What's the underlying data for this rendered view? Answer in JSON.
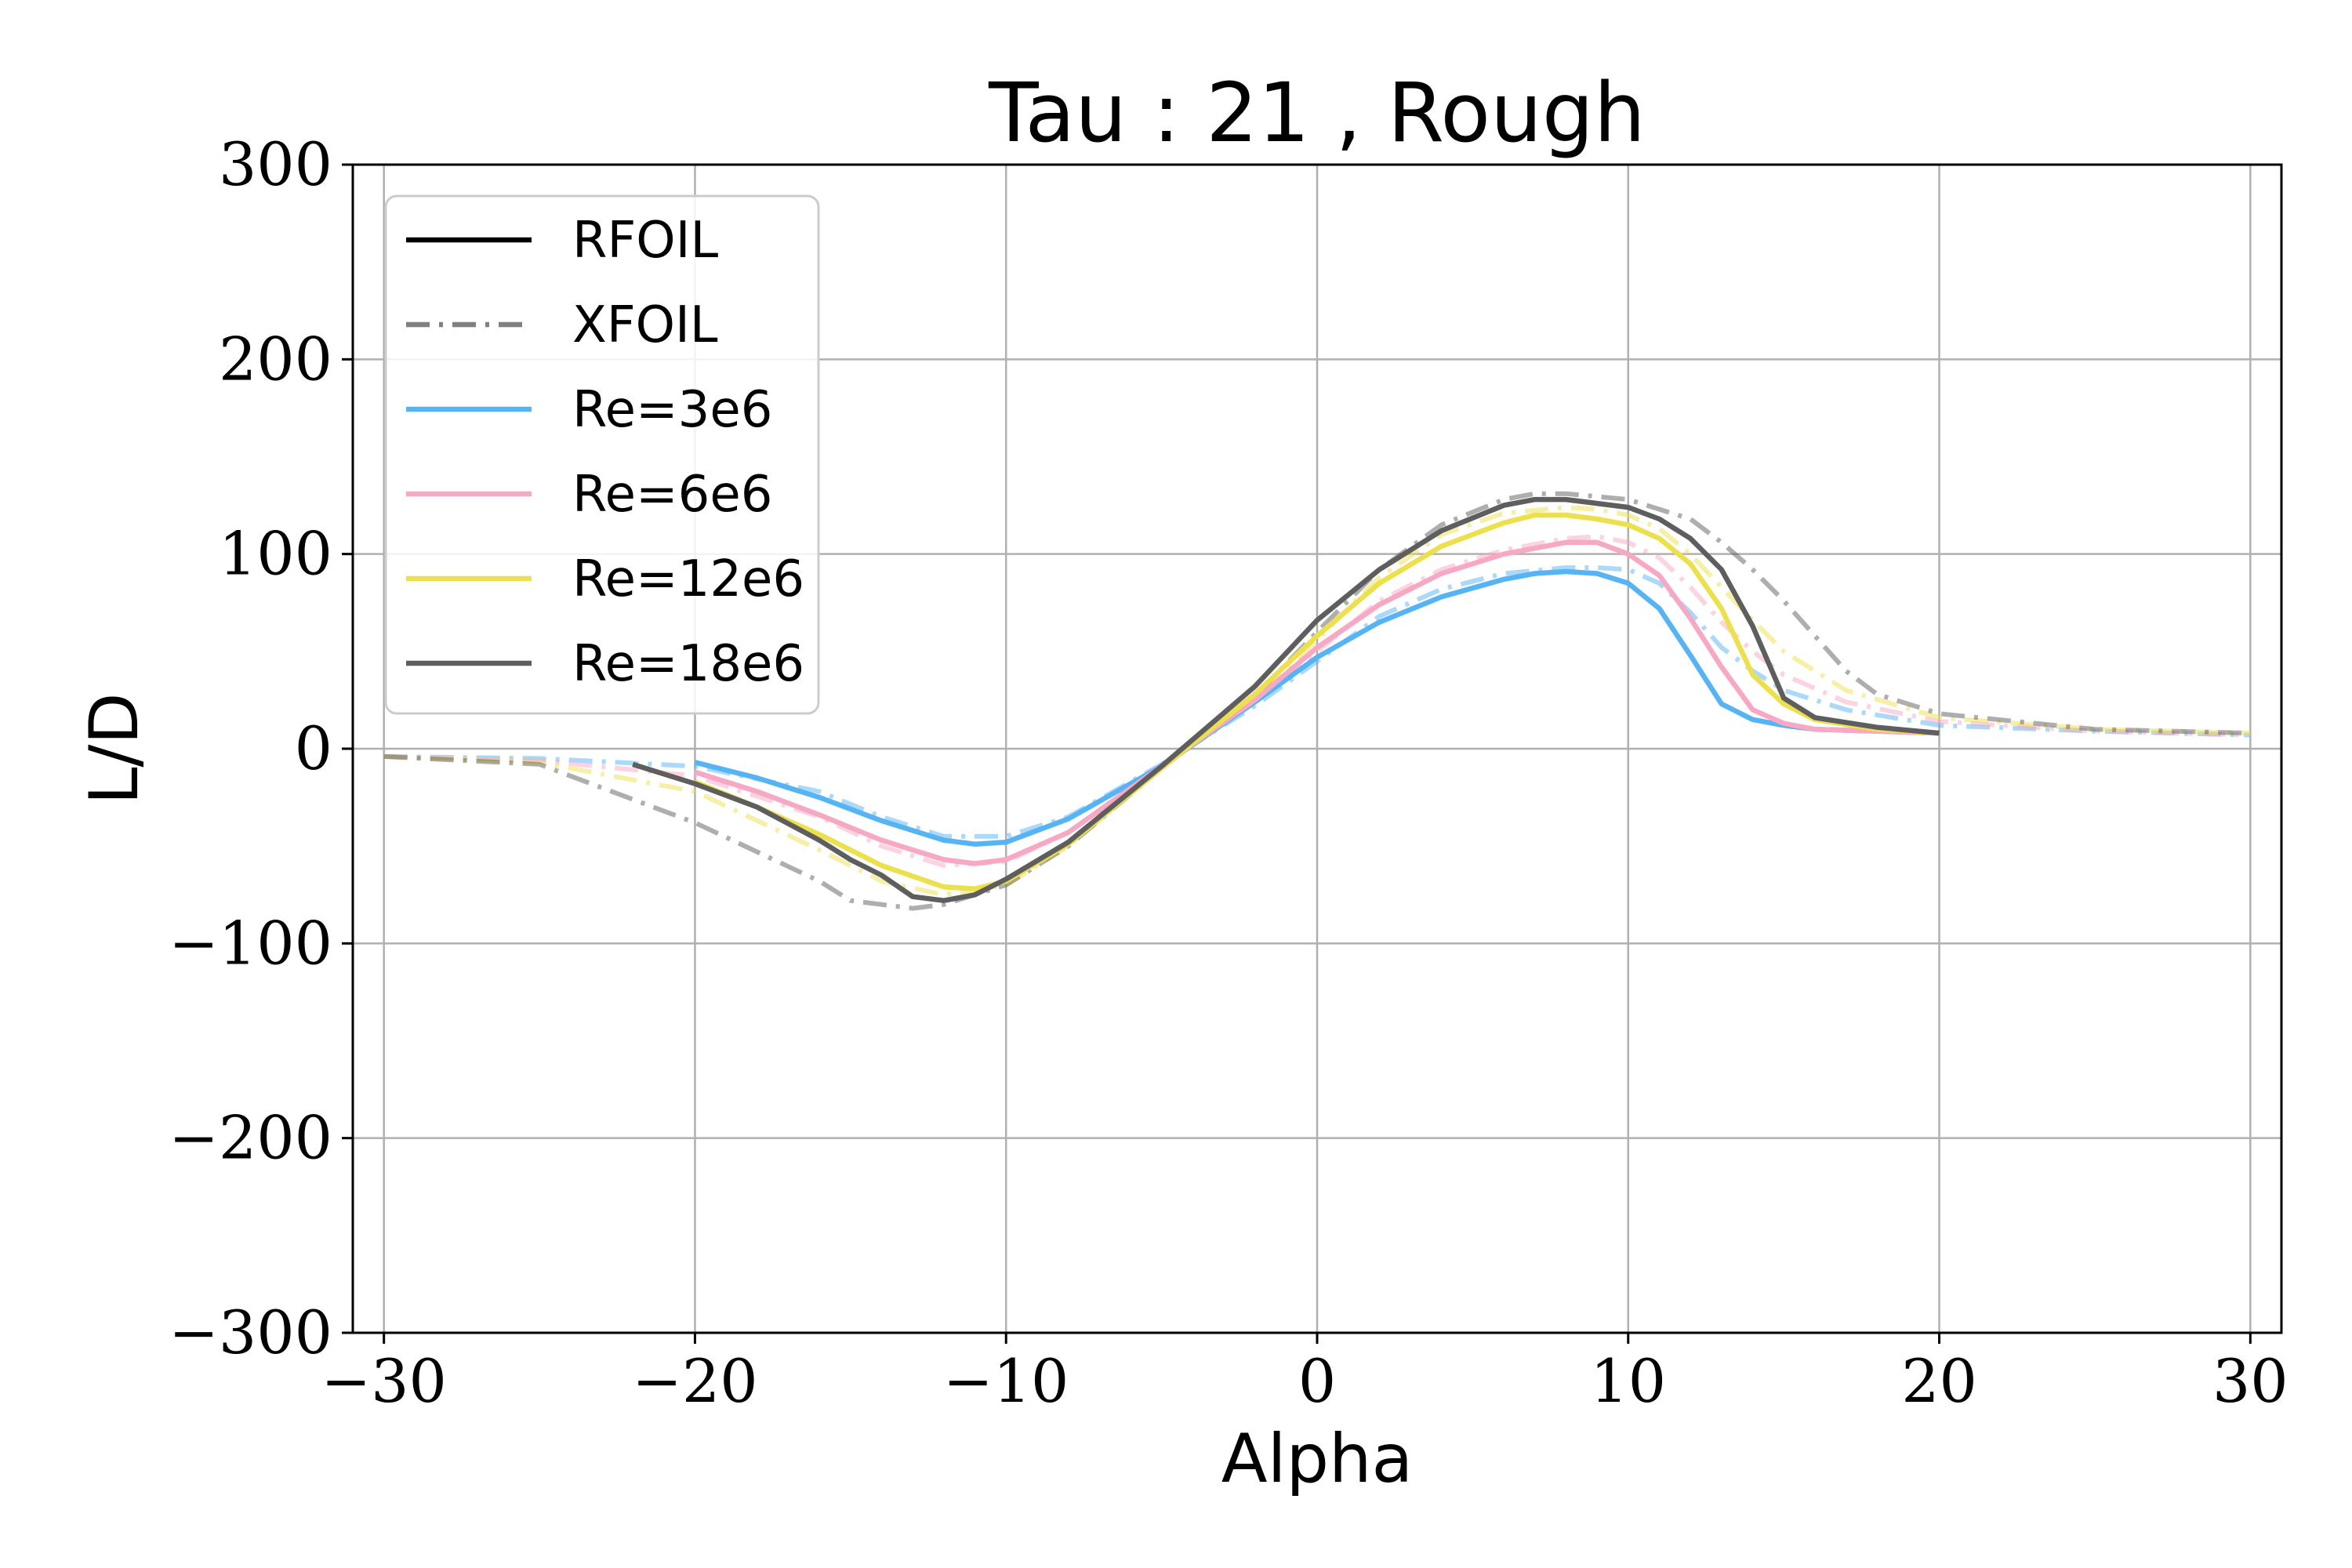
{
  "chart_data": {
    "type": "line",
    "title": "Tau : 21 , Rough",
    "xlabel": "Alpha",
    "ylabel": "L/D",
    "xlim": [
      -31,
      31
    ],
    "ylim": [
      -300,
      300
    ],
    "xticks": [
      -30,
      -20,
      -10,
      0,
      10,
      20,
      30
    ],
    "yticks": [
      -300,
      -200,
      -100,
      0,
      100,
      200,
      300
    ],
    "xtick_labels": [
      "−30",
      "−20",
      "−10",
      "0",
      "10",
      "20",
      "30"
    ],
    "ytick_labels": [
      "−300",
      "−200",
      "−100",
      "0",
      "100",
      "200",
      "300"
    ],
    "grid": true,
    "legend_position": "top-left",
    "legend": [
      {
        "label": "RFOIL",
        "color": "#000000",
        "style": "solid"
      },
      {
        "label": "XFOIL",
        "color": "#808080",
        "style": "dashdot"
      },
      {
        "label": "Re=3e6",
        "color": "#56b4f5",
        "style": "solid"
      },
      {
        "label": "Re=6e6",
        "color": "#f7a8c4",
        "style": "solid"
      },
      {
        "label": "Re=12e6",
        "color": "#ede04d",
        "style": "solid"
      },
      {
        "label": "Re=18e6",
        "color": "#5e5e5e",
        "style": "solid"
      }
    ],
    "series": [
      {
        "name": "Re=3e6",
        "solver": "XFOIL",
        "color": "#56b4f5",
        "x": [
          -30,
          -25,
          -20,
          -16,
          -14,
          -12,
          -10,
          -8,
          -5,
          -2,
          0,
          2,
          4,
          6,
          8,
          9,
          10,
          11,
          12,
          13,
          14,
          15,
          17,
          20,
          25,
          30
        ],
        "y": [
          -4,
          -5,
          -9,
          -22,
          -35,
          -45,
          -45,
          -35,
          -8,
          22,
          45,
          68,
          82,
          90,
          93,
          93,
          92,
          85,
          70,
          52,
          40,
          30,
          20,
          12,
          9,
          7
        ]
      },
      {
        "name": "Re=6e6",
        "solver": "XFOIL",
        "color": "#f7a8c4",
        "x": [
          -30,
          -25,
          -20,
          -16,
          -14,
          -12,
          -10,
          -8,
          -5,
          -2,
          0,
          2,
          4,
          6,
          8,
          9,
          10,
          11,
          12,
          13,
          14,
          15,
          17,
          20,
          25,
          30
        ],
        "y": [
          -4,
          -6,
          -14,
          -35,
          -50,
          -60,
          -58,
          -43,
          -9,
          24,
          50,
          76,
          92,
          102,
          108,
          109,
          106,
          98,
          83,
          65,
          50,
          38,
          24,
          14,
          9,
          7
        ]
      },
      {
        "name": "Re=12e6",
        "solver": "XFOIL",
        "color": "#ede04d",
        "x": [
          -30,
          -25,
          -20,
          -16,
          -14,
          -12,
          -10,
          -8,
          -5,
          -2,
          0,
          2,
          4,
          6,
          8,
          9,
          10,
          11,
          12,
          13,
          14,
          15,
          17,
          20,
          25,
          30
        ],
        "y": [
          -4,
          -7,
          -22,
          -52,
          -68,
          -75,
          -70,
          -50,
          -10,
          26,
          56,
          88,
          110,
          121,
          124,
          123,
          120,
          113,
          100,
          83,
          66,
          50,
          30,
          16,
          10,
          8
        ]
      },
      {
        "name": "Re=18e6",
        "solver": "XFOIL",
        "color": "#5e5e5e",
        "x": [
          -30,
          -25,
          -20,
          -16,
          -15,
          -14,
          -13,
          -12,
          -10,
          -8,
          -5,
          -2,
          0,
          2,
          4,
          6,
          7,
          8,
          10,
          12,
          13,
          14,
          15,
          16,
          17,
          18,
          20,
          25,
          30
        ],
        "y": [
          -4,
          -8,
          -38,
          -68,
          -78,
          -80,
          -82,
          -80,
          -70,
          -50,
          -10,
          27,
          60,
          92,
          115,
          128,
          131,
          131,
          128,
          118,
          106,
          92,
          76,
          58,
          40,
          28,
          18,
          10,
          8
        ]
      },
      {
        "name": "Re=3e6",
        "solver": "RFOIL",
        "color": "#56b4f5",
        "x": [
          -20,
          -18,
          -16,
          -14,
          -12,
          -11,
          -10,
          -8,
          -5,
          -2,
          0,
          2,
          4,
          6,
          7,
          8,
          9,
          10,
          11,
          12,
          13,
          14,
          15,
          16,
          18,
          20
        ],
        "y": [
          -7,
          -15,
          -25,
          -37,
          -47,
          -49,
          -48,
          -36,
          -9,
          24,
          47,
          65,
          78,
          87,
          90,
          91,
          90,
          85,
          72,
          48,
          23,
          15,
          12,
          10,
          9,
          8
        ]
      },
      {
        "name": "Re=6e6",
        "solver": "RFOIL",
        "color": "#f7a8c4",
        "x": [
          -20,
          -18,
          -16,
          -14,
          -12,
          -11,
          -10,
          -8,
          -5,
          -2,
          0,
          2,
          4,
          6,
          8,
          9,
          10,
          11,
          12,
          13,
          14,
          15,
          16,
          18,
          20
        ],
        "y": [
          -12,
          -22,
          -34,
          -47,
          -57,
          -59,
          -57,
          -43,
          -9,
          25,
          52,
          74,
          90,
          100,
          106,
          106,
          100,
          89,
          67,
          42,
          20,
          13,
          10,
          9,
          8
        ]
      },
      {
        "name": "Re=12e6",
        "solver": "RFOIL",
        "color": "#ede04d",
        "x": [
          -20,
          -18,
          -16,
          -14,
          -12,
          -11,
          -10,
          -8,
          -5,
          -2,
          0,
          2,
          4,
          6,
          7,
          8,
          9,
          10,
          11,
          12,
          13,
          14,
          15,
          16,
          18,
          20
        ],
        "y": [
          -17,
          -30,
          -44,
          -60,
          -71,
          -72,
          -68,
          -49,
          -10,
          28,
          58,
          85,
          104,
          116,
          120,
          120,
          118,
          115,
          108,
          95,
          72,
          38,
          23,
          15,
          10,
          8
        ]
      },
      {
        "name": "Re=18e6",
        "solver": "RFOIL",
        "color": "#5e5e5e",
        "x": [
          -22,
          -20,
          -18,
          -16,
          -15,
          -14,
          -13,
          -12,
          -11,
          -10,
          -8,
          -5,
          -2,
          0,
          2,
          4,
          6,
          7,
          8,
          9,
          10,
          11,
          12,
          13,
          14,
          15,
          16,
          18,
          20
        ],
        "y": [
          -8,
          -18,
          -30,
          -47,
          -57,
          -65,
          -76,
          -78,
          -75,
          -67,
          -48,
          -9,
          32,
          66,
          92,
          112,
          125,
          128,
          128,
          126,
          124,
          118,
          108,
          92,
          63,
          26,
          16,
          11,
          8
        ]
      }
    ]
  }
}
